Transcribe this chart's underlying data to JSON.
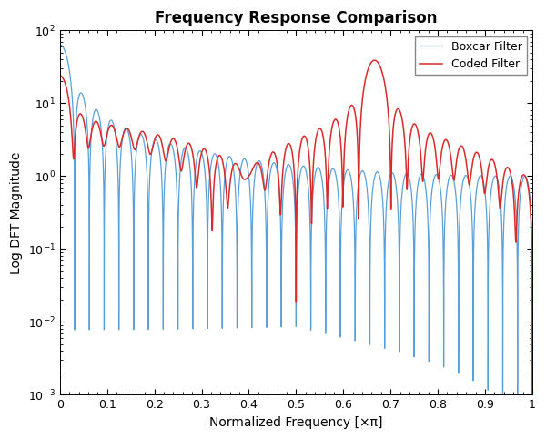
{
  "title": "Frequency Response Comparison",
  "xlabel": "Normalized Frequency [×π]",
  "ylabel": "Log DFT Magnitude",
  "xlim": [
    0,
    1
  ],
  "ylim_log": [
    0.001,
    100.0
  ],
  "boxcar_color": "#5aa0d8",
  "coded_color": "#d92b2b",
  "boxcar_label": "Boxcar Filter",
  "coded_label": "Coded Filter",
  "boxcar_N": 64,
  "num_points": 8192,
  "background_color": "#ffffff",
  "title_fontsize": 12,
  "axis_label_fontsize": 10,
  "tick_fontsize": 9,
  "legend_fontsize": 9
}
